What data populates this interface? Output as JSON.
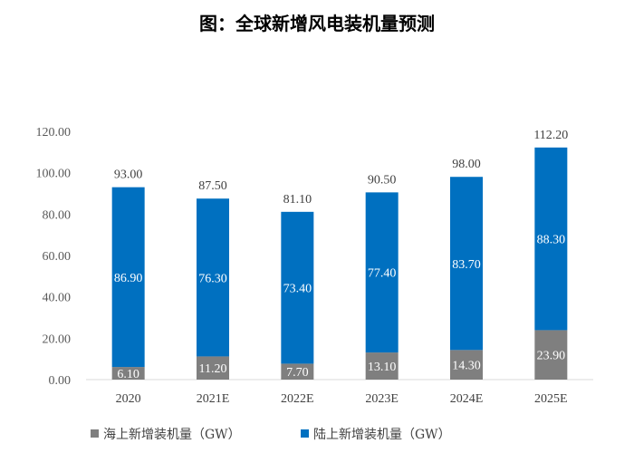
{
  "chart_data": {
    "type": "bar",
    "stacked": true,
    "title": "图：全球新增风电装机量预测",
    "categories": [
      "2020",
      "2021E",
      "2022E",
      "2023E",
      "2024E",
      "2025E"
    ],
    "series": [
      {
        "name": "海上新增装机量（GW）",
        "color": "#7f7f7f",
        "values": [
          6.1,
          11.2,
          7.7,
          13.1,
          14.3,
          23.9
        ]
      },
      {
        "name": "陆上新增装机量（GW）",
        "color": "#0070c0",
        "values": [
          86.9,
          76.3,
          73.4,
          77.4,
          83.7,
          88.3
        ]
      }
    ],
    "totals": [
      93.0,
      87.5,
      81.1,
      90.5,
      98.0,
      112.2
    ],
    "ylim": [
      0,
      120
    ],
    "yticks": [
      "0.00",
      "20.00",
      "40.00",
      "60.00",
      "80.00",
      "100.00",
      "120.00"
    ],
    "grid": false,
    "legend_position": "bottom"
  }
}
